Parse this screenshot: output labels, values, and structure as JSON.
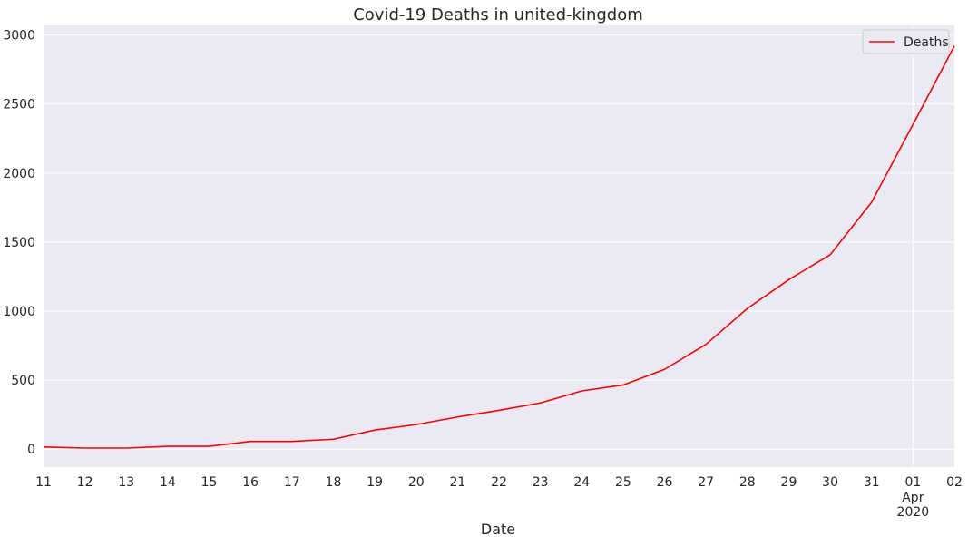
{
  "chart_data": {
    "type": "line",
    "title": "Covid-19 Deaths in united-kingdom",
    "xlabel": "Date",
    "ylabel": "",
    "x": [
      "2020-03-11",
      "2020-03-12",
      "2020-03-13",
      "2020-03-14",
      "2020-03-15",
      "2020-03-16",
      "2020-03-17",
      "2020-03-18",
      "2020-03-19",
      "2020-03-20",
      "2020-03-21",
      "2020-03-22",
      "2020-03-23",
      "2020-03-24",
      "2020-03-25",
      "2020-03-26",
      "2020-03-27",
      "2020-03-28",
      "2020-03-29",
      "2020-03-30",
      "2020-03-31",
      "2020-04-01",
      "2020-04-02"
    ],
    "x_tick_labels": [
      "11",
      "12",
      "13",
      "14",
      "15",
      "16",
      "17",
      "18",
      "19",
      "20",
      "21",
      "22",
      "23",
      "24",
      "25",
      "26",
      "27",
      "28",
      "29",
      "30",
      "31",
      "01",
      "02"
    ],
    "x_secondary_labels": [
      {
        "at": "2020-04-01",
        "lines": [
          "Apr",
          "2020"
        ]
      }
    ],
    "series": [
      {
        "name": "Deaths",
        "color": "#ff0000",
        "values": [
          16,
          8,
          8,
          21,
          21,
          56,
          56,
          72,
          138,
          178,
          233,
          281,
          335,
          422,
          465,
          578,
          759,
          1019,
          1228,
          1408,
          1789,
          2352,
          2921
        ]
      }
    ],
    "ylim": [
      -130,
      3070
    ],
    "y_ticks": [
      0,
      500,
      1000,
      1500,
      2000,
      2500,
      3000
    ],
    "grid": true,
    "legend_position": "top-right",
    "style": {
      "plot_background": "#eaeaf2",
      "grid_color": "#ffffff",
      "text_color": "#262626"
    }
  }
}
